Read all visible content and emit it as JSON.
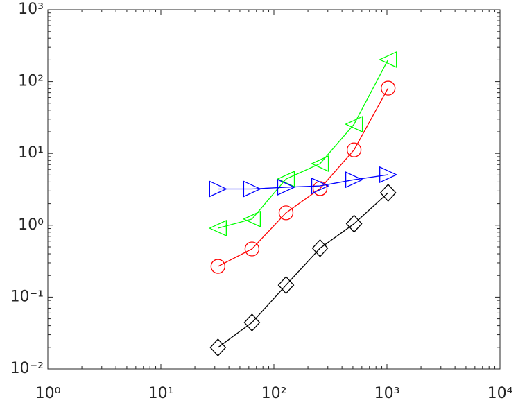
{
  "chart_data": {
    "type": "line",
    "x": [
      32,
      64,
      128,
      256,
      512,
      1024
    ],
    "series": [
      {
        "color": "#ff0000",
        "marker": "circle",
        "values": [
          0.268,
          0.468,
          1.49,
          3.24,
          11.2,
          81
        ]
      },
      {
        "color": "#00ff00",
        "marker": "triangle-left",
        "values": [
          0.91,
          1.22,
          4.4,
          7.2,
          25.5,
          202
        ]
      },
      {
        "color": "#0000ff",
        "marker": "triangle-right",
        "values": [
          3.2,
          3.2,
          3.38,
          3.53,
          4.3,
          5.05
        ]
      },
      {
        "color": "#000000",
        "marker": "diamond",
        "values": [
          0.0199,
          0.0443,
          0.147,
          0.479,
          1.05,
          2.83
        ]
      }
    ],
    "xlim": [
      1,
      10000
    ],
    "ylim": [
      0.01,
      1000
    ],
    "xscale": "log",
    "yscale": "log",
    "xticks": [
      {
        "value": 1,
        "label": "10⁰"
      },
      {
        "value": 10,
        "label": "10¹"
      },
      {
        "value": 100,
        "label": "10²"
      },
      {
        "value": 1000,
        "label": "10³"
      },
      {
        "value": 10000,
        "label": "10⁴"
      }
    ],
    "yticks": [
      {
        "value": 0.01,
        "label": "10⁻²"
      },
      {
        "value": 0.1,
        "label": "10⁻¹"
      },
      {
        "value": 1,
        "label": "10⁰"
      },
      {
        "value": 10,
        "label": "10¹"
      },
      {
        "value": 100,
        "label": "10²"
      },
      {
        "value": 1000,
        "label": "10³"
      }
    ]
  }
}
